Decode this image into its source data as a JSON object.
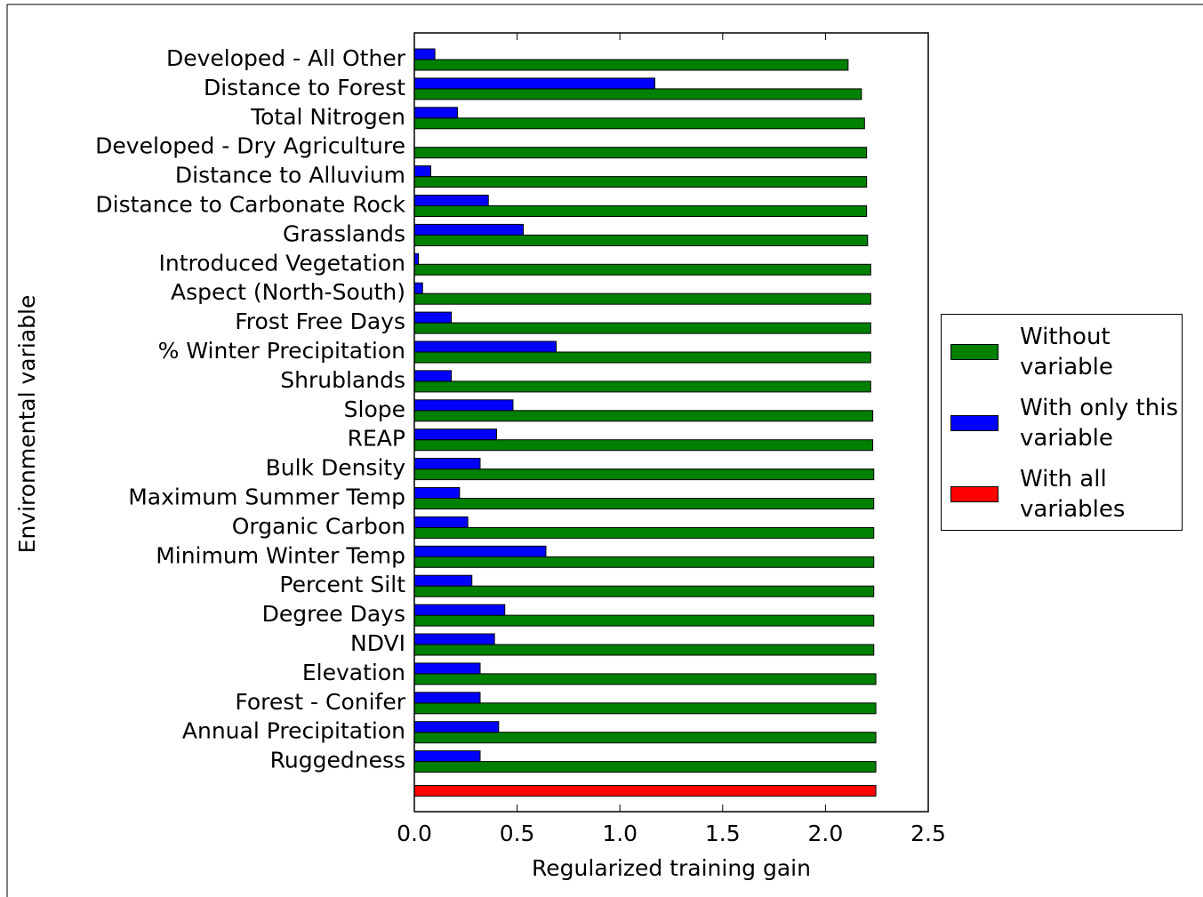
{
  "chart_data": {
    "type": "barh",
    "xlabel": "Regularized training gain",
    "ylabel": "Environmental variable",
    "categories": [
      "Developed - All Other",
      "Distance to Forest",
      "Total Nitrogen",
      "Developed - Dry Agriculture",
      "Distance to Alluvium",
      "Distance to Carbonate Rock",
      "Grasslands",
      "Introduced Vegetation",
      "Aspect (North-South)",
      "Frost Free Days",
      "% Winter Precipitation",
      "Shrublands",
      "Slope",
      "REAP",
      "Bulk Density",
      "Maximum Summer Temp",
      "Organic Carbon",
      "Minimum Winter Temp",
      "Percent Silt",
      "Degree Days",
      "NDVI",
      "Elevation",
      "Forest - Conifer",
      "Annual Precipitation",
      "Ruggedness",
      null
    ],
    "series": [
      {
        "name": "Without variable",
        "color": "#008000",
        "values": [
          2.11,
          2.175,
          2.19,
          2.2,
          2.2,
          2.2,
          2.205,
          2.22,
          2.22,
          2.22,
          2.22,
          2.22,
          2.23,
          2.23,
          2.235,
          2.235,
          2.235,
          2.235,
          2.235,
          2.235,
          2.235,
          2.245,
          2.245,
          2.245,
          2.245,
          null
        ]
      },
      {
        "name": "With only this variable",
        "color": "#0000ff",
        "values": [
          0.1,
          1.17,
          0.21,
          0.0,
          0.08,
          0.36,
          0.53,
          0.02,
          0.04,
          0.18,
          0.69,
          0.18,
          0.48,
          0.4,
          0.32,
          0.22,
          0.26,
          0.64,
          0.28,
          0.44,
          0.39,
          0.32,
          0.32,
          0.41,
          0.32,
          null
        ]
      },
      {
        "name": "With all variables",
        "color": "#ff0000",
        "values": [
          null,
          null,
          null,
          null,
          null,
          null,
          null,
          null,
          null,
          null,
          null,
          null,
          null,
          null,
          null,
          null,
          null,
          null,
          null,
          null,
          null,
          null,
          null,
          null,
          null,
          2.245
        ]
      }
    ],
    "xlim": [
      0,
      2.5
    ],
    "xticks": [
      {
        "value": 0,
        "label": "0.0"
      },
      0.5,
      {
        "value": 1,
        "label": "1.0"
      },
      1.5,
      {
        "value": 2,
        "label": "2.0"
      },
      2.5
    ],
    "legend": "right"
  }
}
